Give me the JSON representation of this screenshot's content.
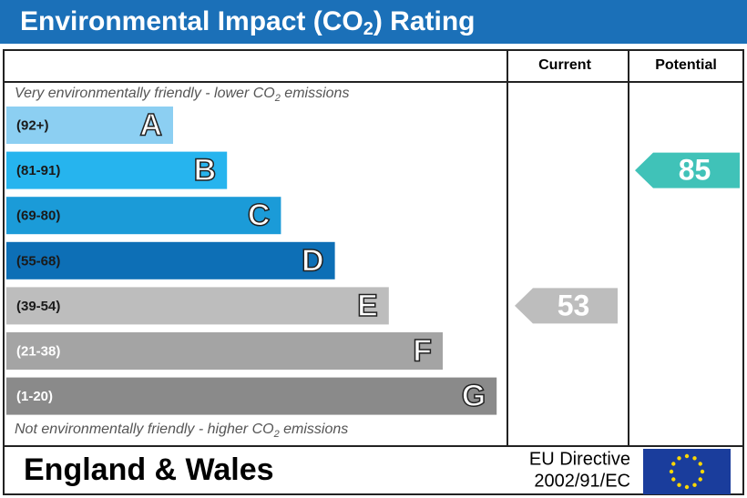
{
  "title_parts": [
    "Environmental Impact (CO",
    "2",
    ") Rating"
  ],
  "columns": [
    "Current",
    "Potential"
  ],
  "top_note_parts": [
    "Very environmentally friendly - lower CO",
    "2",
    " emissions"
  ],
  "bottom_note_parts": [
    "Not environmentally friendly - higher CO",
    "2",
    " emissions"
  ],
  "bands": [
    {
      "range": "(92+)",
      "min": 92,
      "letter": "A",
      "color": "#8ccff2"
    },
    {
      "range": "(81-91)",
      "min": 81,
      "letter": "B",
      "color": "#26b4ee"
    },
    {
      "range": "(69-80)",
      "min": 69,
      "letter": "C",
      "color": "#1b9bd8"
    },
    {
      "range": "(55-68)",
      "min": 55,
      "letter": "D",
      "color": "#0d6fb6"
    },
    {
      "range": "(39-54)",
      "min": 39,
      "letter": "E",
      "color": "#bdbdbd"
    },
    {
      "range": "(21-38)",
      "min": 21,
      "letter": "F",
      "color": "#a4a4a4"
    },
    {
      "range": "(1-20)",
      "min": 1,
      "letter": "G",
      "color": "#8a8a8a"
    }
  ],
  "current": {
    "value": 53,
    "color": "#bdbdbd"
  },
  "potential": {
    "value": 85,
    "color": "#40c2b8"
  },
  "footer": {
    "region": "England & Wales",
    "directive_lines": [
      "EU Directive",
      "2002/91/EC"
    ]
  }
}
